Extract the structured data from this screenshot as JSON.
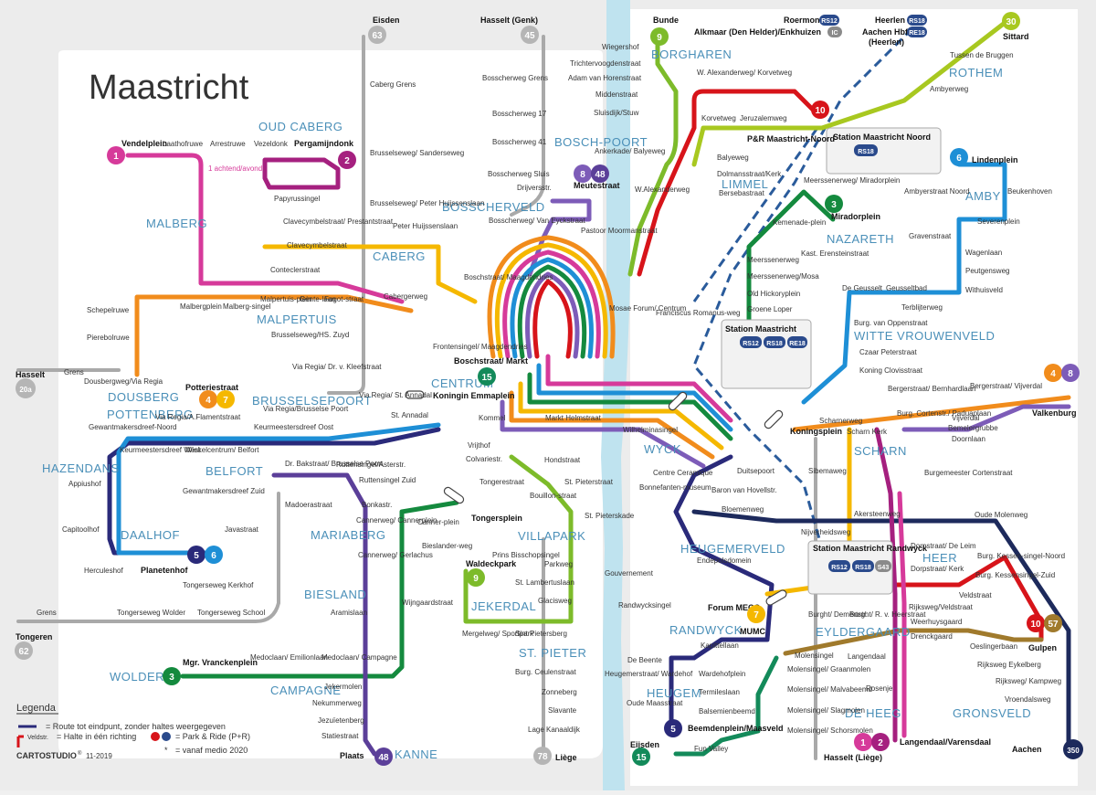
{
  "title": "Maastricht",
  "colors": {
    "l1": "#d63a9a",
    "l2": "#a5207f",
    "l3": "#148a3e",
    "l4": "#f18c1c",
    "l5": "#2a2a7a",
    "l6": "#1e8fd6",
    "l7": "#f5b800",
    "l8": "#7d5cb8",
    "l9": "#7dbb2a",
    "l10": "#d7141a",
    "l15": "#138a5a",
    "l30": "#a8c820",
    "l48": "#5b3f99",
    "l57": "#a07a2c",
    "l350": "#1d2a5c",
    "grey": "#9a9a9a",
    "river": "#bfe3ef",
    "park": "#ffffff"
  },
  "districts": [
    "OUD CABERG",
    "MALBERG",
    "CABERG",
    "BOSSCHERVELD",
    "MALPERTUIS",
    "DOUSBERG",
    "BRUSSELSEPOORT",
    "POTTENBERG",
    "HAZENDANS",
    "BELFORT",
    "DAALHOF",
    "MARIABERG",
    "BIESLAND",
    "WOLDER",
    "CAMPAGNE",
    "KANNE",
    "CENTRUM",
    "JEKERDAL",
    "VILLAPARK",
    "ST. PIETER",
    "WYCK",
    "HEUGEMERVELD",
    "RANDWYCK",
    "HEUGEM",
    "LIMMEL",
    "BOSCH-POORT",
    "BORGHAREN",
    "NAZARETH",
    "AMBY",
    "WITTE VROUWENVELD",
    "SCHARN",
    "HEER",
    "EYLDERGAARD",
    "DE HEEG",
    "GRONSVELD",
    "ROTHEM"
  ],
  "endpoints": {
    "eisden": "Eisden",
    "hasselt_genk": "Hasselt (Genk)",
    "bunde": "Bunde",
    "roermond": "Roermond",
    "alkmaar": "Alkmaar (Den Helder)/Enkhuizen",
    "heerlen": "Heerlen",
    "aachen_hbf": "Aachen Hbf",
    "aachen_heerlen": "(Heerlen)",
    "sittard": "Sittard",
    "hasselt": "Hasselt",
    "tongeren": "Tongeren",
    "valkenburg": "Valkenburg",
    "gulpen": "Gulpen",
    "aachen": "Aachen",
    "liege": "Liège",
    "hasselt_liege": "Hasselt (Liège)",
    "eijsden": "Eijsden",
    "plaats": "Plaats",
    "lanaken": "Lanaken"
  },
  "stations": {
    "noord": "Station Maastricht Noord",
    "main": "Station Maastricht",
    "randwyck": "Station Maastricht Randwyck"
  },
  "stops": {
    "vendelplein": "Vendelplein",
    "laathofruwe": "Laathofruwe",
    "arrestruwe": "Arrestruwe",
    "vezeldonk": "Vezeldonk",
    "pergaminjdonk": "Pergamijndonk",
    "achtend": "1 achtend/avond",
    "papyrussingel": "Papyrussingel",
    "brusselseweg_sanderseweg": "Brusselseweg/ Sanderseweg",
    "caberg_grens": "Caberg Grens",
    "brusselseweg_peter": "Brusselseweg/ Peter Huijssenslaan",
    "clavecymbel_prestant": "Clavecymbelstraat/ Prestantstraat",
    "peter_huijssenslaan": "Peter Huijssenslaan",
    "clavecymbelstraat": "Clavecymbelstraat",
    "conteclerstraat": "Conteclerstraat",
    "cabergerweg": "Cabergerweg",
    "malbergplein": "Malbergplein",
    "malberg_singel": "Malberg-singel",
    "malpertuisplein": "Malpertuis-plein",
    "gentelaan": "Gente-laan",
    "fagotstraat": "Fagot-straat",
    "schepelruwe": "Schepelruwe",
    "pierebolruwe": "Pierebolruwe",
    "brusselseweg_hs": "Brusselseweg/HS. Zuyd",
    "via_regia_kleerstraat": "Via Regia/ Dr. v. Kleefstraat",
    "grens": "Grens",
    "dousberg_via": "Dousbergweg/Via Regia",
    "via_regia_annadal": "Via Regia/ St. Annadal",
    "potteriestraat": "Potteriestraat",
    "via_regia_brusselse": "Via Regia/Brusselse Poort",
    "via_regia_flament": "Via Regia/A.Flamentstraat",
    "keurmeester_oost": "Keurmeestersdreef Oost",
    "gewantmakers_noord": "Gewantmakersdreef-Noord",
    "st_annadal": "St. Annadal",
    "keurmeesters_west": "Keurmeestersdreef West",
    "winkelcentrum_belfort": "Winkelcentrum/ Belfort",
    "bakstraat": "Dr. Bakstraat/ Brusselse Poort",
    "ruttensingel_asterstr": "Ruttensingel/Asterstr.",
    "appiushof": "Appiushof",
    "gewantmakers_zuid": "Gewantmakersdreef Zuid",
    "ruttensingel_zuid": "Ruttensingel Zuid",
    "madoerastraat": "Madoerastraat",
    "bonkastr": "Bonkastr.",
    "capitoolhof": "Capitoolhof",
    "javastraat": "Javastraat",
    "cannerweg_cannerplein": "Cannerweg/ Cannerplein",
    "cannerplein": "Canner-plein",
    "cannerweg_gerlachus": "Cannerweg/ Gerlachus",
    "bieslanderweg": "Bieslander-weg",
    "herculeshof": "Herculeshof",
    "planetenhof": "Planetenhof",
    "tongerseweg_kerkhof": "Tongerseweg Kerkhof",
    "aramislaan": "Aramislaan",
    "wijngaardstraat": "Wijngaardstraat",
    "grens_tongeren": "Grens",
    "tongerseweg_wolder": "Tongerseweg Wolder",
    "tongerseweg_school": "Tongerseweg School",
    "mgr_vranckenplein": "Mgr. Vranckenplein",
    "medoclaan_emilionlaan": "Medoclaan/ Emilionlaan",
    "medoclaan_campagne": "Medoclaan/ Campagne",
    "jekermolen": "Jekermolen",
    "nekummerweg": "Nekummerweg",
    "jezuietenberg": "Jezuïetenberg",
    "statiestraat": "Statiestraat",
    "bosscherweg_grens": "Bosscherweg Grens",
    "bosscherweg_17": "Bosscherweg 17",
    "bosscherweg_41": "Bosscherweg 41",
    "bosscherweg_sluis": "Bosscherweg Sluis",
    "driejversstr": "Drijversstr.",
    "meutestraat": "Meutestraat",
    "bosscherweg_van_eyck": "Bosscherweg/ Van Eyckstraat",
    "pastoor_moormanstraat": "Pastoor Moormanstraat",
    "boschstraat_maagdendries": "Boschstraat/ Maagdendries",
    "mosae_forum": "Mosae Forum/ Centrum",
    "frontensingel_maagdendries": "Frontensingel/ Maagdendries",
    "boschstraat_markt": "Boschstraat/ Markt",
    "koningin_emmaplein": "Koningin Emmaplein",
    "kommel": "Kommel",
    "markt_helmstraat": "Markt Helmstraat",
    "vrijthof": "Vrijthof",
    "colvariestr": "Colvariestr.",
    "hondstraat": "Hondstraat",
    "st_pieterstraat": "St. Pieterstraat",
    "tongerestraat": "Tongerestraat",
    "bouillonstraat": "Bouillon-straat",
    "st_pieterskade": "St. Pieterskade",
    "tongersplein": "Tongersplein",
    "prins_bisschop": "Prins Bisschopsingel",
    "waldeckpark": "Waldeckpark",
    "parkweg": "Parkweg",
    "st_lambertuslaan": "St. Lambertuslaan",
    "glacisweg": "Glacisweg",
    "mergelweg": "Mergelweg/ Sportpark",
    "sint_pietersberg": "Sint Pietersberg",
    "burg_ceulenstraat": "Burg. Ceulenstraat",
    "zonneberg": "Zonneberg",
    "slavante": "Slavante",
    "lage_kanaaldijk": "Lage Kanaaldijk",
    "wiegershof": "Wiegershof",
    "trichtervoogdenstraat": "Trichtervoogdenstraat",
    "adam_van_horenstraat": "Adam van Horenstraat",
    "middenstraat": "Middenstraat",
    "sluisdijk": "Sluisdijk/Stuw",
    "ankerkade": "Ankerkade/ Balyeweg",
    "w_alexanderweg": "W.Alexanderweg",
    "w_alexanderweg_korvetweg": "W. Alexanderweg/ Korvetweg",
    "korvetweg": "Korvetweg",
    "jeruzalemweg": "Jeruzalemweg",
    "pr_noord": "P&R Maastricht-Noord",
    "balyeweg": "Balyeweg",
    "dolmansstraat": "Dolmansstraat/Kerk",
    "bersebastraat": "Bersebastraat",
    "franciscus_romanusweg": "Franciscus Romanus-weg",
    "meerssenerweg_mirador": "Meerssenerweg/ Miradorplein",
    "miradorplein": "Miradorplein",
    "kemenadeplein": "Kemenade-plein",
    "kast_erensteinstraat": "Kast. Erensteinstraat",
    "meerssenerweg": "Meerssenerweg",
    "meerssenerweg_mosa": "Meerssenerweg/Mosa",
    "old_hickoryplein": "Old Hickoryplein",
    "groene_loper": "Groene Loper",
    "tussen_de_bruggen": "Tussen de Bruggen",
    "ambyerweg": "Ambyerweg",
    "lindenplein": "Lindenplein",
    "ambyerstraat_noord": "Ambyerstraat Noord",
    "beukenhoven": "Beukenhoven",
    "severenplein": "Severenplein",
    "gravenstraat": "Gravenstraat",
    "wagenlaan": "Wagenlaan",
    "peutgensweg": "Peutgensweg",
    "withuisveld": "Withuisveld",
    "de_geusselt": "De Geusselt",
    "geusseltbad": "Geusseltbad",
    "terblijterweg": "Terblijterweg",
    "burg_van_oppenstraat": "Burg. van Oppenstraat",
    "czaar_peterstraat": "Czaar Peterstraat",
    "koning_clovisstraat": "Koning Clovisstraat",
    "bergerstraat_bernhardlaan": "Bergerstraat/ Bernhardlaan",
    "bergerstraat_vijverdal": "Bergerstraat/ Vijverdal",
    "burg_cortenstr": "Burg. Cortenstr./ Paduaplaan",
    "vijverdal": "Vijverdal",
    "bemelergrubbe": "Bemelergrubbe",
    "doornlaan": "Doornlaan",
    "scharnerweg": "Scharnerweg",
    "koningsplein": "Koningsplein",
    "schar_kerk": "Scharn Kerk",
    "wilhelminasingel": "Wilhelminasingel",
    "centre_ceramique": "Centre Ceramique",
    "bonnefanten": "Bonnefanten-museum",
    "duitsepoort": "Duitsepoort",
    "baron_van_hovellstr": "Baron van Hovellstr.",
    "bloemenweg": "Bloemenweg",
    "sibemaweg": "Sibemaweg",
    "burgemeester_cortenstraat": "Burgemeester Cortenstraat",
    "akersteenweg": "Akersteenweg",
    "oude_molenweg": "Oude Molenweg",
    "nieverheidsweg": "Nijverheidsweg",
    "endepolsdomein": "Endepolsdomein",
    "gouvernement": "Gouvernement",
    "randwycksingel": "Randwycksingel",
    "forum_mecc": "Forum MECC",
    "mumc": "MUMC",
    "dorpstraat_de_leim": "Dorpstraat/ De Leim",
    "dorpstraat_kerk": "Dorpstraat/ Kerk",
    "burg_kessensingel_noord": "Burg. Kessen-singel-Noord",
    "burg_kessensingel_zuid": "Burg. Kessensingel-Zuid",
    "veldstraat": "Veldstraat",
    "burght_demertstr": "Burght/ Demertstr.",
    "burght_heerstraat": "Burght/ R. v. Heerstraat",
    "rijksweg_veldstraat": "Rijksweg/Veldstraat",
    "weerhuysgaard": "Weerhuysgaard",
    "drenckgaard": "Drenckgaard",
    "oeslingerbaan": "Oeslingerbaan",
    "rijksweg_eykelberg": "Rijksweg Eykelberg",
    "rijksweg_kampweg": "Rijksweg/ Kampweg",
    "vroendalsweg": "Vroendalsweg",
    "kapittellaan": "Kapittellaan",
    "de_beente": "De Beente",
    "heugemerstraat": "Heugemerstraat/ Wardehof",
    "oude_maasstraat": "Oude Maasstraat",
    "wardehofplein": "Wardehofplein",
    "termileslaan": "Termileslaan",
    "balsemienbeemd": "Balsemienbeemd",
    "beemdenplein": "Beemdenplein/Maasveld",
    "fun_valley": "Fun Valley",
    "molensingel": "Molensingel",
    "molensingel_graanmolen": "Molensingel/ Graanmolen",
    "molensingel_malvabeemd": "Molensingel/ Malvabeemd",
    "molensingel_slagmolen": "Molensingel/ Slagmolen",
    "molensingel_schorsmolen": "Molensingel/ Schorsmolen",
    "langendaal": "Langendaal",
    "rosenje": "Rosenje",
    "langendaal_varensdaal": "Langendaal/Varensdaal"
  },
  "badges": [
    {
      "id": "1",
      "color": "l1"
    },
    {
      "id": "2",
      "color": "l2"
    },
    {
      "id": "3",
      "color": "l3"
    },
    {
      "id": "4",
      "color": "l4"
    },
    {
      "id": "5",
      "color": "l5"
    },
    {
      "id": "6",
      "color": "l6"
    },
    {
      "id": "7",
      "color": "l7"
    },
    {
      "id": "8",
      "color": "l8"
    },
    {
      "id": "9",
      "color": "l9"
    },
    {
      "id": "10",
      "color": "l10"
    },
    {
      "id": "15",
      "color": "l15"
    },
    {
      "id": "30",
      "color": "l30"
    },
    {
      "id": "48",
      "color": "l48"
    },
    {
      "id": "57",
      "color": "l57"
    },
    {
      "id": "350",
      "color": "l350"
    },
    {
      "id": "45",
      "color": "grey"
    },
    {
      "id": "62",
      "color": "grey"
    },
    {
      "id": "63",
      "color": "grey"
    },
    {
      "id": "78",
      "color": "grey"
    },
    {
      "id": "20a",
      "color": "grey"
    }
  ],
  "train_codes": {
    "rs12": "RS12",
    "rs18": "RS18",
    "re18": "RE18",
    "ic": "IC",
    "s43": "S43"
  },
  "legend": {
    "title": "Legenda",
    "route_end": "= Route tot eindpunt, zonder haltes weergegeven",
    "one_way": "= Halte in één richting",
    "park_ride": "= Park & Ride (P+R)",
    "from_2020": "= vanaf medio 2020",
    "star": "*",
    "veldstr": "Veldstr."
  },
  "footer": {
    "brand": "CARTOSTUDIO",
    "registered": "®",
    "date": "11-2019"
  }
}
